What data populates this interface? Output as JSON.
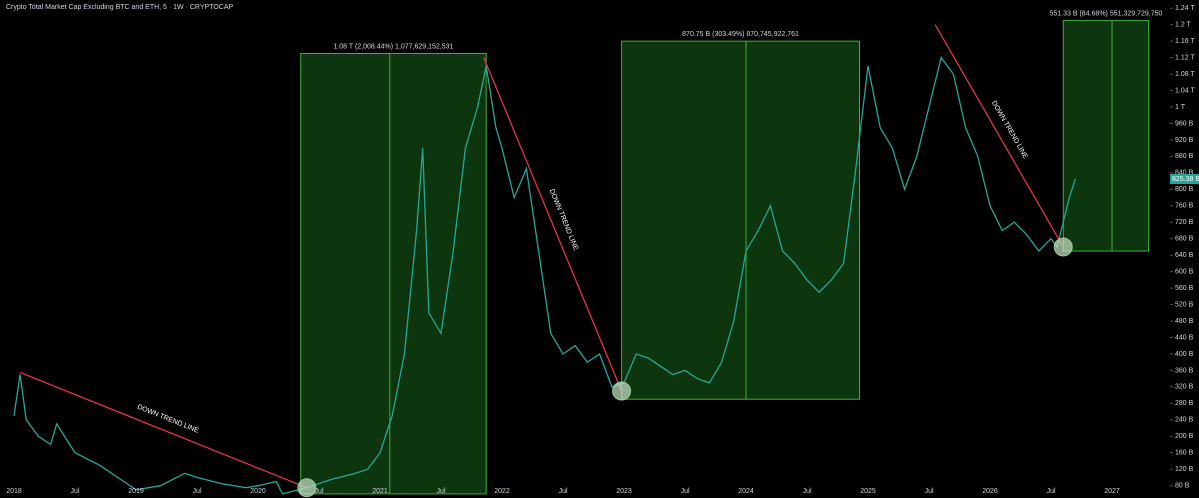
{
  "chart_data": {
    "type": "line",
    "title": "Crypto Total Market Cap Excluding BTC and ETH, 5 · 1W · CRYPTOCAP",
    "price_label": "825.38 B",
    "color": "#26a69a",
    "x": [
      2018.0,
      2018.05,
      2018.1,
      2018.2,
      2018.3,
      2018.35,
      2018.5,
      2018.7,
      2018.9,
      2019.0,
      2019.2,
      2019.4,
      2019.5,
      2019.7,
      2019.9,
      2020.0,
      2020.15,
      2020.2,
      2020.4,
      2020.6,
      2020.8,
      2020.9,
      2021.0,
      2021.1,
      2021.2,
      2021.3,
      2021.35,
      2021.4,
      2021.5,
      2021.6,
      2021.7,
      2021.8,
      2021.87,
      2021.95,
      2022.0,
      2022.1,
      2022.2,
      2022.3,
      2022.4,
      2022.5,
      2022.6,
      2022.7,
      2022.8,
      2022.9,
      2023.0,
      2023.1,
      2023.2,
      2023.3,
      2023.4,
      2023.5,
      2023.6,
      2023.7,
      2023.8,
      2023.9,
      2024.0,
      2024.1,
      2024.2,
      2024.3,
      2024.4,
      2024.5,
      2024.6,
      2024.7,
      2024.8,
      2024.9,
      2025.0,
      2025.1,
      2025.2,
      2025.3,
      2025.4,
      2025.5,
      2025.6,
      2025.7,
      2025.8,
      2025.9,
      2026.0,
      2026.1,
      2026.2,
      2026.3,
      2026.4,
      2026.5,
      2026.55,
      2026.6,
      2026.65,
      2026.7
    ],
    "values": [
      250,
      350,
      240,
      200,
      180,
      230,
      160,
      130,
      90,
      70,
      80,
      110,
      100,
      85,
      75,
      80,
      90,
      60,
      75,
      95,
      110,
      120,
      160,
      250,
      400,
      700,
      900,
      500,
      450,
      650,
      900,
      1000,
      1100,
      950,
      900,
      780,
      850,
      650,
      450,
      400,
      420,
      380,
      400,
      320,
      330,
      400,
      390,
      370,
      350,
      360,
      340,
      330,
      380,
      480,
      650,
      700,
      760,
      650,
      620,
      580,
      550,
      580,
      620,
      850,
      1100,
      950,
      900,
      800,
      880,
      1000,
      1120,
      1080,
      950,
      880,
      760,
      700,
      720,
      690,
      650,
      680,
      660,
      720,
      780,
      825
    ],
    "xlim": [
      2017.885,
      2027.475
    ],
    "xticks": [
      {
        "value": 2018,
        "label": "2018"
      },
      {
        "value": 2018.5,
        "label": "Jul"
      },
      {
        "value": 2019,
        "label": "2019"
      },
      {
        "value": 2019.5,
        "label": "Jul"
      },
      {
        "value": 2020,
        "label": "2020"
      },
      {
        "value": 2020.5,
        "label": "Jul"
      },
      {
        "value": 2021,
        "label": "2021"
      },
      {
        "value": 2021.5,
        "label": "Jul"
      },
      {
        "value": 2022,
        "label": "2022"
      },
      {
        "value": 2022.5,
        "label": "Jul"
      },
      {
        "value": 2023,
        "label": "2023"
      },
      {
        "value": 2023.5,
        "label": "Jul"
      },
      {
        "value": 2024,
        "label": "2024"
      },
      {
        "value": 2024.5,
        "label": "Jul"
      },
      {
        "value": 2025,
        "label": "2025"
      },
      {
        "value": 2025.5,
        "label": "Jul"
      },
      {
        "value": 2026,
        "label": "2026"
      },
      {
        "value": 2026.5,
        "label": "Jul"
      },
      {
        "value": 2027,
        "label": "2027"
      }
    ],
    "ylim": [
      50,
      1260
    ],
    "yticks": [
      {
        "value": 80,
        "label": "80 B"
      },
      {
        "value": 120,
        "label": "120 B"
      },
      {
        "value": 160,
        "label": "160 B"
      },
      {
        "value": 200,
        "label": "200 B"
      },
      {
        "value": 240,
        "label": "240 B"
      },
      {
        "value": 280,
        "label": "280 B"
      },
      {
        "value": 320,
        "label": "320 B"
      },
      {
        "value": 360,
        "label": "360 B"
      },
      {
        "value": 400,
        "label": "400 B"
      },
      {
        "value": 440,
        "label": "440 B"
      },
      {
        "value": 480,
        "label": "480 B"
      },
      {
        "value": 520,
        "label": "520 B"
      },
      {
        "value": 560,
        "label": "560 B"
      },
      {
        "value": 600,
        "label": "600 B"
      },
      {
        "value": 640,
        "label": "640 B"
      },
      {
        "value": 680,
        "label": "680 B"
      },
      {
        "value": 720,
        "label": "720 B"
      },
      {
        "value": 760,
        "label": "760 B"
      },
      {
        "value": 800,
        "label": "800 B"
      },
      {
        "value": 840,
        "label": "840 B"
      },
      {
        "value": 880,
        "label": "880 B"
      },
      {
        "value": 920,
        "label": "920 B"
      },
      {
        "value": 960,
        "label": "960 B"
      },
      {
        "value": 1000,
        "label": "1 T"
      },
      {
        "value": 1040,
        "label": "1.04 T"
      },
      {
        "value": 1080,
        "label": "1.08 T"
      },
      {
        "value": 1120,
        "label": "1.12 T"
      },
      {
        "value": 1160,
        "label": "1.16 T"
      },
      {
        "value": 1200,
        "label": "1.2 T"
      },
      {
        "value": 1240,
        "label": "1.24 T"
      }
    ],
    "ranges": [
      {
        "label": "1.08 T (2,008.44%) 1,077,629,152,531",
        "x0": 2020.35,
        "x_mid": 2021.08,
        "x1": 2021.87,
        "y0": 60,
        "y1": 1130
      },
      {
        "label": "870.75 B (303.49%) 870,745,922,761",
        "x0": 2022.98,
        "x_mid": 2024.0,
        "x1": 2024.93,
        "y0": 290,
        "y1": 1160
      },
      {
        "label": "551.33 B (84.68%) 551,329,729,750",
        "x0": 2026.6,
        "x_mid": 2027.0,
        "x1": 2027.3,
        "y0": 650,
        "y1": 1210
      }
    ],
    "trend_lines": [
      {
        "label": "DOWN TREND LINE",
        "x0": 2018.05,
        "y0": 355,
        "x1": 2020.4,
        "y1": 75
      },
      {
        "label": "DOWN TREND LINE",
        "x0": 2021.85,
        "y0": 1120,
        "x1": 2022.98,
        "y1": 310
      },
      {
        "label": "DOWN TREND LINE",
        "x0": 2025.55,
        "y0": 1200,
        "x1": 2026.6,
        "y1": 660
      }
    ]
  }
}
